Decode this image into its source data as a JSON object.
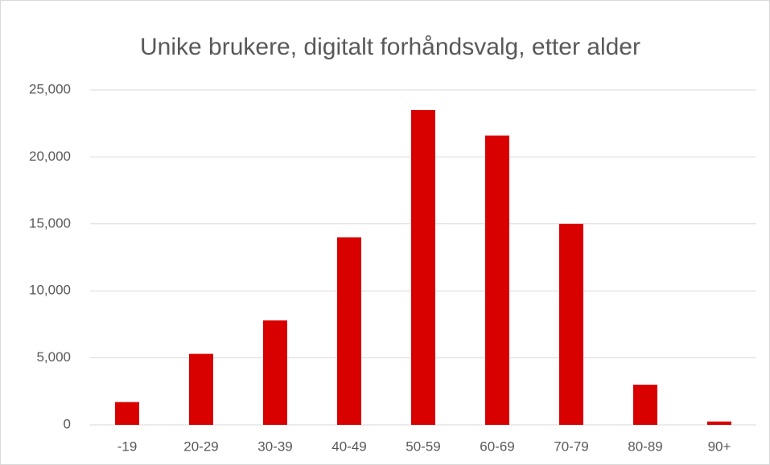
{
  "chart_data": {
    "type": "bar",
    "title": "Unike brukere, digitalt forhåndsvalg, etter alder",
    "categories": [
      "-19",
      "20-29",
      "30-39",
      "40-49",
      "50-59",
      "60-69",
      "70-79",
      "80-89",
      "90+"
    ],
    "values": [
      1700,
      5300,
      7800,
      14000,
      23500,
      21600,
      15000,
      3000,
      250
    ],
    "color": "#d90000",
    "ylim": [
      0,
      25000
    ],
    "yticks": [
      0,
      {
        "value": 5000,
        "label": "5,000"
      },
      {
        "value": 10000,
        "label": "10,000"
      },
      {
        "value": 15000,
        "label": "15,000"
      },
      {
        "value": 20000,
        "label": "20,000"
      },
      {
        "value": 25000,
        "label": "25,000"
      }
    ],
    "grid": true
  }
}
